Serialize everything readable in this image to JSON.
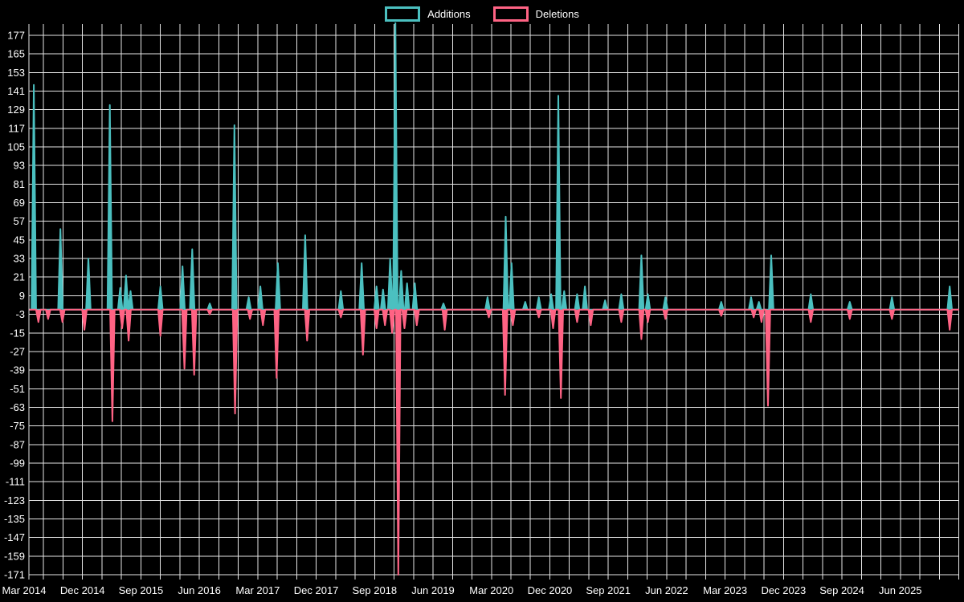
{
  "legend": {
    "items": [
      {
        "label": "Additions",
        "color": "#4bc0c0"
      },
      {
        "label": "Deletions",
        "color": "#ff6384"
      }
    ]
  },
  "chart_data": {
    "type": "line",
    "title": "",
    "background_color": "#000000",
    "grid_color": "#e6e6e6",
    "text_color": "#ffffff",
    "legend_position": "top",
    "grid": true,
    "y_axis": {
      "tick_max": 177,
      "tick_min": -171,
      "tick_step": 12,
      "tick_labels": [
        177,
        165,
        153,
        141,
        129,
        117,
        105,
        93,
        81,
        69,
        57,
        45,
        33,
        21,
        9,
        -3,
        -15,
        -27,
        -39,
        -51,
        -63,
        -75,
        -87,
        -99,
        -111,
        -123,
        -135,
        -147,
        -159,
        -171
      ]
    },
    "x_axis": {
      "tick_labels": [
        "Mar 2014",
        "Dec 2014",
        "Sep 2015",
        "Jun 2016",
        "Mar 2017",
        "Dec 2017",
        "Sep 2018",
        "Jun 2019",
        "Mar 2020",
        "Dec 2020",
        "Sep 2021",
        "Jun 2022",
        "Mar 2023",
        "Dec 2023",
        "Sep 2024",
        "Jun 2025"
      ],
      "months_between_labels": 9,
      "gridline_every_months": 3,
      "total_months": 144,
      "x_unit": "months since Mar 2014"
    },
    "baseline": 0,
    "series": [
      {
        "name": "Additions",
        "color": "#4bc0c0",
        "points": [
          [
            1.5,
            145
          ],
          [
            5.6,
            52
          ],
          [
            9.9,
            33
          ],
          [
            13.2,
            132
          ],
          [
            14.8,
            14
          ],
          [
            15.7,
            22
          ],
          [
            16.4,
            12
          ],
          [
            21,
            15
          ],
          [
            24.4,
            28
          ],
          [
            25.9,
            39
          ],
          [
            28.6,
            4
          ],
          [
            32.4,
            119
          ],
          [
            34.6,
            8
          ],
          [
            36.4,
            15
          ],
          [
            39.1,
            30
          ],
          [
            43.3,
            48
          ],
          [
            48.8,
            12
          ],
          [
            52,
            30
          ],
          [
            54.3,
            15
          ],
          [
            55.3,
            13
          ],
          [
            56.4,
            33
          ],
          [
            57.2,
            185
          ],
          [
            58.1,
            25
          ],
          [
            59,
            17
          ],
          [
            60.2,
            17
          ],
          [
            64.6,
            4
          ],
          [
            71.4,
            8
          ],
          [
            74.2,
            60
          ],
          [
            75.1,
            30
          ],
          [
            77.2,
            5
          ],
          [
            79.3,
            8
          ],
          [
            81.2,
            10
          ],
          [
            82.3,
            138
          ],
          [
            83.2,
            12
          ],
          [
            85.2,
            10
          ],
          [
            86.4,
            15
          ],
          [
            89.5,
            6
          ],
          [
            92,
            10
          ],
          [
            95.1,
            35
          ],
          [
            96.1,
            10
          ],
          [
            98.8,
            8
          ],
          [
            107.4,
            5
          ],
          [
            112,
            8
          ],
          [
            113.2,
            5
          ],
          [
            115.1,
            35
          ],
          [
            121.2,
            10
          ],
          [
            127.2,
            5
          ],
          [
            133.7,
            8
          ],
          [
            142.6,
            15
          ]
        ]
      },
      {
        "name": "Deletions",
        "color": "#ff6384",
        "points": [
          [
            2.2,
            -8
          ],
          [
            3.7,
            -6
          ],
          [
            5.9,
            -8
          ],
          [
            9.3,
            -13
          ],
          [
            13.6,
            -72
          ],
          [
            15.1,
            -12
          ],
          [
            16.1,
            -20
          ],
          [
            21,
            -17
          ],
          [
            24.7,
            -38
          ],
          [
            26.2,
            -42
          ],
          [
            28.6,
            -3
          ],
          [
            32.5,
            -67
          ],
          [
            34.8,
            -6
          ],
          [
            36.8,
            -10
          ],
          [
            38.9,
            -44
          ],
          [
            43.6,
            -20
          ],
          [
            48.8,
            -5
          ],
          [
            52.2,
            -29
          ],
          [
            54.3,
            -12
          ],
          [
            55.6,
            -10
          ],
          [
            56.7,
            -15
          ],
          [
            57.65,
            -171
          ],
          [
            58.6,
            -12
          ],
          [
            60.5,
            -10
          ],
          [
            64.8,
            -13
          ],
          [
            71.6,
            -5
          ],
          [
            74.1,
            -55
          ],
          [
            75.3,
            -10
          ],
          [
            79.3,
            -5
          ],
          [
            81.5,
            -12
          ],
          [
            82.7,
            -57
          ],
          [
            85.2,
            -8
          ],
          [
            87.3,
            -10
          ],
          [
            92,
            -8
          ],
          [
            95.1,
            -19
          ],
          [
            96.1,
            -8
          ],
          [
            98.8,
            -6
          ],
          [
            107.4,
            -4
          ],
          [
            112.4,
            -5
          ],
          [
            113.6,
            -8
          ],
          [
            114.6,
            -62
          ],
          [
            121.2,
            -8
          ],
          [
            127.2,
            -6
          ],
          [
            133.7,
            -6
          ],
          [
            142.6,
            -13
          ]
        ]
      }
    ]
  }
}
